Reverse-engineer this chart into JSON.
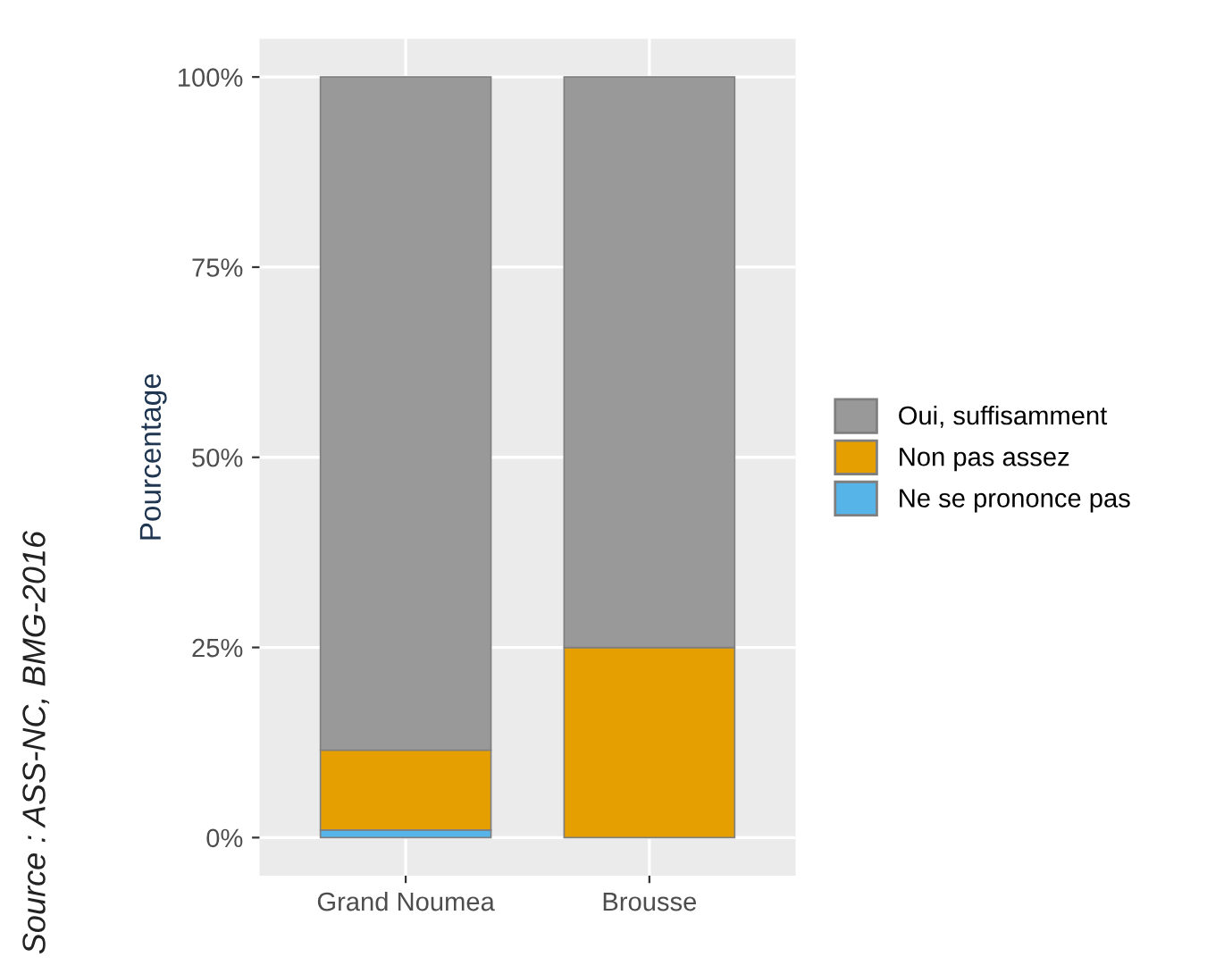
{
  "chart_data": {
    "type": "bar",
    "stacked": true,
    "ylabel": "Pourcentage",
    "categories": [
      "Grand Noumea",
      "Brousse"
    ],
    "series": [
      {
        "name": "Ne se prononce pas",
        "color": "#56b4e9",
        "values": [
          1,
          null
        ]
      },
      {
        "name": "Non pas assez",
        "color": "#e69f00",
        "values": [
          10.5,
          25
        ]
      },
      {
        "name": "Oui, suffisamment",
        "color": "#999999",
        "values": [
          88.5,
          75
        ]
      }
    ],
    "ylim": [
      -5,
      105
    ],
    "yticks": [
      {
        "value": 0,
        "label": "0%"
      },
      {
        "value": 25,
        "label": "25%"
      },
      {
        "value": 50,
        "label": "50%"
      },
      {
        "value": 75,
        "label": "75%"
      },
      {
        "value": 100,
        "label": "100%"
      }
    ],
    "grid": true,
    "legend": "right",
    "annotations": [
      "Source : ASS-NC, BMG-2016"
    ]
  }
}
